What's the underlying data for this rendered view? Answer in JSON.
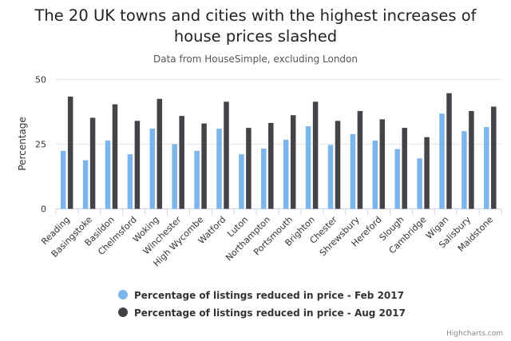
{
  "chart_data": {
    "type": "bar",
    "title": "The 20 UK towns and cities with the highest increases of house prices slashed",
    "title_lines": [
      "The 20 UK towns and cities with the highest increases of",
      "house prices slashed"
    ],
    "subtitle": "Data from HouseSimple, excluding London",
    "xlabel": "",
    "ylabel": "Percentage",
    "ylim": [
      0,
      50
    ],
    "yticks": [
      0,
      25,
      50
    ],
    "grid": true,
    "legend_position": "bottom",
    "categories": [
      "Reading",
      "Basingstoke",
      "Basildon",
      "Chelmsford",
      "Woking",
      "Winchester",
      "High Wycombe",
      "Watford",
      "Luton",
      "Northampton",
      "Portsmouth",
      "Brighton",
      "Chester",
      "Shrewsbury",
      "Hereford",
      "Slough",
      "Cambridge",
      "Wigan",
      "Salisbury",
      "Maidstone"
    ],
    "series": [
      {
        "name": "Percentage of listings reduced in price - Feb 2017",
        "color": "#7cb5ec",
        "values": [
          22.4,
          18.8,
          26.4,
          21.1,
          31.0,
          25.0,
          22.4,
          31.0,
          21.1,
          23.3,
          26.7,
          31.9,
          24.7,
          28.9,
          26.4,
          23.1,
          19.5,
          36.8,
          30.0,
          31.6
        ]
      },
      {
        "name": "Percentage of listings reduced in price - Aug 2017",
        "color": "#434348",
        "values": [
          43.4,
          35.2,
          40.4,
          34.0,
          42.5,
          35.9,
          33.0,
          41.4,
          31.3,
          33.2,
          36.2,
          41.4,
          34.0,
          37.8,
          34.6,
          31.3,
          27.7,
          44.7,
          37.8,
          39.5
        ]
      }
    ]
  },
  "credits": "Highcharts.com"
}
